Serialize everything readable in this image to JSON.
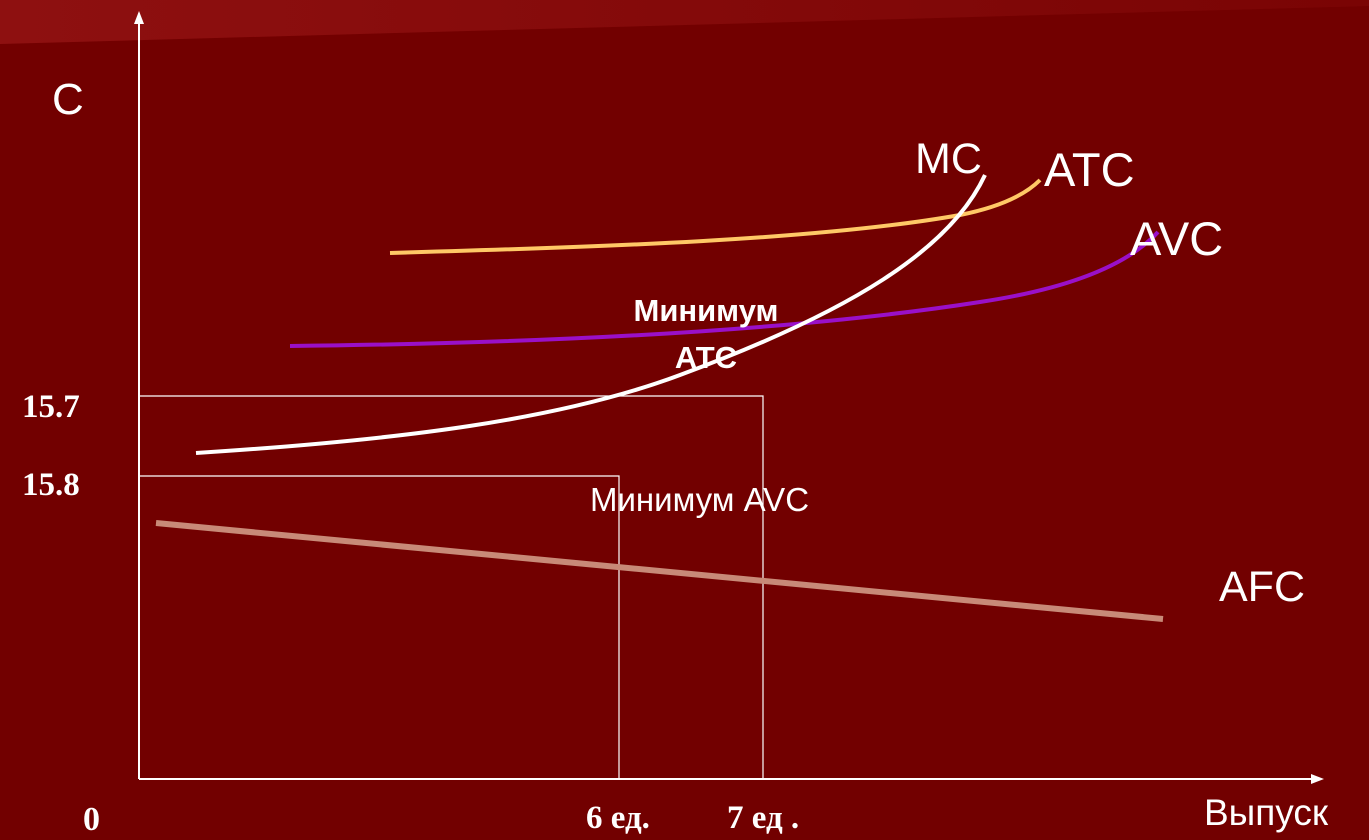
{
  "colors": {
    "background": "#720000",
    "header_band": "#8a0d0d",
    "axes": "#ffffff",
    "mc": "#ffffff",
    "atc": "#ffc866",
    "avc": "#9a10c8",
    "afc": "#c88a78"
  },
  "chart_data": {
    "type": "line",
    "title": "",
    "ylabel": "C",
    "xlabel": "Выпуск",
    "origin_label": "0",
    "y_ticks": [
      "15.7",
      "15.8"
    ],
    "x_ticks": [
      "6 ед.",
      "7 ед ."
    ],
    "grid": false,
    "series": [
      {
        "name": "MC",
        "curve": "MC"
      },
      {
        "name": "ATC",
        "curve": "ATC"
      },
      {
        "name": "AVC",
        "curve": "AVC"
      },
      {
        "name": "AFC",
        "curve": "AFC"
      }
    ],
    "annotations": {
      "min_atc": "Минимум\nАТС",
      "min_avc": "Минимум AVC"
    },
    "guides": [
      {
        "x_tick": "6 ед.",
        "y_tick": "15.8"
      },
      {
        "x_tick": "7 ед .",
        "y_tick": "15.7"
      }
    ]
  }
}
